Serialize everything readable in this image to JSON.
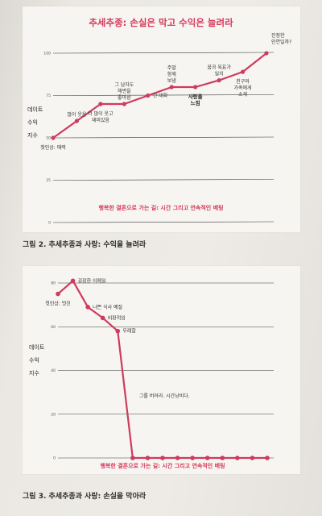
{
  "figure_title": "추세추종: 손실은 막고 수익은 늘려라",
  "captions": {
    "fig2": "그림 2. 추세추종과 사랑: 수익을 늘려라",
    "fig3": "그림 3. 추세추종과 사랑: 손실을 막아라"
  },
  "colors": {
    "line": "#cf3b5c",
    "accent": "#d63a5a",
    "grid": "#333333"
  },
  "chart_data": [
    {
      "type": "line",
      "title": "추세추종: 손실은 막고 수익은 늘려라",
      "ylabel": [
        "데이트",
        "수익",
        "지수"
      ],
      "footer": "행복한 결혼으로 가는 길: 시간 그리고 연속적인 베팅",
      "yticks": [
        0,
        25,
        50,
        75,
        100
      ],
      "ylim": [
        0,
        100
      ],
      "grid": true,
      "values": [
        50,
        60,
        70,
        70,
        75,
        80,
        80,
        84,
        89,
        100
      ],
      "annotations": [
        {
          "index": 0,
          "lines": [
            "첫인상: 매력"
          ],
          "pos": "below"
        },
        {
          "index": 1,
          "lines": [
            "많이 웃음"
          ],
          "pos": "above"
        },
        {
          "index": 2,
          "lines": [
            "더 많이 웃고",
            "재미있음"
          ],
          "pos": "below"
        },
        {
          "index": 3,
          "lines": [
            "그 남자도",
            "해변을",
            "좋아함"
          ],
          "pos": "above"
        },
        {
          "index": 4,
          "lines": [
            "긴 대화"
          ],
          "pos": "right"
        },
        {
          "index": 5,
          "lines": [
            "주말",
            "함께",
            "보냄"
          ],
          "pos": "above"
        },
        {
          "index": 6,
          "lines": [
            "사랑을",
            "느낌"
          ],
          "pos": "below-bold"
        },
        {
          "index": 7,
          "lines": [
            "꿈과 목표가",
            "일치"
          ],
          "pos": "above"
        },
        {
          "index": 8,
          "lines": [
            "친구와",
            "가족에게",
            "소개"
          ],
          "pos": "below"
        },
        {
          "index": 9,
          "lines": [
            "진정한",
            "인연일까?"
          ],
          "pos": "right-up"
        }
      ]
    },
    {
      "type": "line",
      "ylabel": [
        "데이트",
        "수익",
        "지수"
      ],
      "footer": "행복한 결혼으로 가는 길: 시간 그리고 연속적인 베팅",
      "yticks": [
        0,
        20,
        40,
        60,
        80
      ],
      "ylim": [
        0,
        80
      ],
      "grid": true,
      "values": [
        75,
        81,
        69,
        64,
        58,
        0,
        0,
        0,
        0,
        0,
        0,
        0,
        0,
        0,
        0
      ],
      "annotations": [
        {
          "index": 0,
          "lines": [
            "첫인상: 멋진"
          ],
          "pos": "below"
        },
        {
          "index": 1,
          "lines": [
            "굉장한 이메일"
          ],
          "pos": "right"
        },
        {
          "index": 2,
          "lines": [
            "나쁜 식사 예절"
          ],
          "pos": "right"
        },
        {
          "index": 3,
          "lines": [
            "비판적임"
          ],
          "pos": "right"
        },
        {
          "index": 4,
          "lines": [
            "무례함"
          ],
          "pos": "right"
        },
        {
          "index": 5,
          "lines": [
            "그를 버려라. 시간낭비다."
          ],
          "pos": "text-mid"
        }
      ]
    }
  ]
}
